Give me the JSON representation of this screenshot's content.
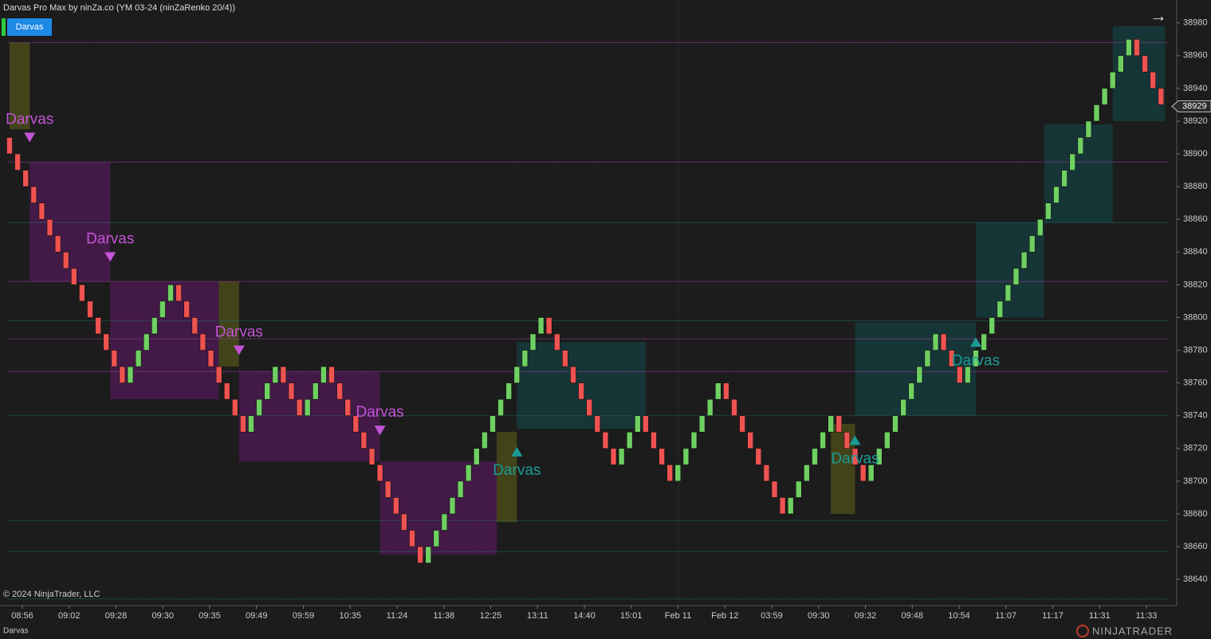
{
  "chart_data": {
    "type": "renko",
    "title": "Darvas Pro Max by ninZa.co (YM 03-24 (ninZaRenko 20/4))",
    "button": "Darvas",
    "copyright": "© 2024 NinjaTrader, LLC",
    "footer_tab": "Darvas",
    "brand": "NINJATRADER",
    "up_color": "#6fd062",
    "down_color": "#ef5350",
    "ylim": [
      38624,
      38994
    ],
    "yticks": [
      38640,
      38660,
      38680,
      38700,
      38720,
      38740,
      38760,
      38780,
      38800,
      38820,
      38840,
      38860,
      38880,
      38900,
      38920,
      38940,
      38960,
      38980
    ],
    "last_price": 38929,
    "categories": [
      "08:56",
      "09:02",
      "09:28",
      "09:30",
      "09:35",
      "09:49",
      "09:59",
      "10:35",
      "11:24",
      "11:38",
      "12:25",
      "13:11",
      "14:40",
      "15:01",
      "Feb 11",
      "Feb 12",
      "03:59",
      "09:30",
      "09:32",
      "09:48",
      "10:54",
      "11:07",
      "11:17",
      "11:31",
      "11:33"
    ],
    "open": [
      38910,
      38900,
      38890,
      38880,
      38870,
      38860,
      38850,
      38840,
      38830,
      38820,
      38810,
      38800,
      38790,
      38780,
      38770,
      38760,
      38770,
      38780,
      38790,
      38800,
      38810,
      38820,
      38810,
      38800,
      38790,
      38780,
      38770,
      38760,
      38750,
      38740,
      38730,
      38740,
      38750,
      38760,
      38770,
      38760,
      38750,
      38740,
      38750,
      38760,
      38770,
      38760,
      38750,
      38740,
      38730,
      38720,
      38710,
      38700,
      38690,
      38680,
      38670,
      38660,
      38650,
      38660,
      38670,
      38680,
      38690,
      38700,
      38710,
      38720,
      38730,
      38740,
      38750,
      38760,
      38770,
      38780,
      38790,
      38800,
      38790,
      38780,
      38770,
      38760,
      38750,
      38740,
      38730,
      38720,
      38710,
      38720,
      38730,
      38740,
      38730,
      38720,
      38710,
      38700,
      38710,
      38720,
      38730,
      38740,
      38750,
      38760,
      38750,
      38740,
      38730,
      38720,
      38710,
      38700,
      38690,
      38680,
      38690,
      38700,
      38710,
      38720,
      38730,
      38740,
      38730,
      38720,
      38710,
      38700,
      38710,
      38720,
      38730,
      38740,
      38750,
      38760,
      38770,
      38780,
      38790,
      38780,
      38770,
      38760,
      38770,
      38780,
      38790,
      38800,
      38810,
      38820,
      38830,
      38840,
      38850,
      38860,
      38870,
      38880,
      38890,
      38900,
      38910,
      38920,
      38930,
      38940,
      38950,
      38960,
      38970,
      38960,
      38950,
      38940
    ],
    "close": [
      38900,
      38890,
      38880,
      38870,
      38860,
      38850,
      38840,
      38830,
      38820,
      38810,
      38800,
      38790,
      38780,
      38770,
      38760,
      38770,
      38780,
      38790,
      38800,
      38810,
      38820,
      38810,
      38800,
      38790,
      38780,
      38770,
      38760,
      38750,
      38740,
      38730,
      38740,
      38750,
      38760,
      38770,
      38760,
      38750,
      38740,
      38750,
      38760,
      38770,
      38760,
      38750,
      38740,
      38730,
      38720,
      38710,
      38700,
      38690,
      38680,
      38670,
      38660,
      38650,
      38660,
      38670,
      38680,
      38690,
      38700,
      38710,
      38720,
      38730,
      38740,
      38750,
      38760,
      38770,
      38780,
      38790,
      38800,
      38790,
      38780,
      38770,
      38760,
      38750,
      38740,
      38730,
      38720,
      38710,
      38720,
      38730,
      38740,
      38730,
      38720,
      38710,
      38700,
      38710,
      38720,
      38730,
      38740,
      38750,
      38760,
      38750,
      38740,
      38730,
      38720,
      38710,
      38700,
      38690,
      38680,
      38690,
      38700,
      38710,
      38720,
      38730,
      38740,
      38730,
      38720,
      38710,
      38700,
      38710,
      38720,
      38730,
      38740,
      38750,
      38760,
      38770,
      38780,
      38790,
      38780,
      38770,
      38760,
      38770,
      38780,
      38790,
      38800,
      38810,
      38820,
      38830,
      38840,
      38850,
      38860,
      38870,
      38880,
      38890,
      38900,
      38910,
      38920,
      38930,
      38940,
      38950,
      38960,
      38970,
      38960,
      38950,
      38940,
      38930
    ],
    "boxes": [
      {
        "x": [
          0,
          2.5
        ],
        "top": 38968,
        "bottom": 38915,
        "color": "#4a4a1a"
      },
      {
        "x": [
          2.5,
          12.5
        ],
        "top": 38895,
        "bottom": 38822,
        "color": "#4a1a4f"
      },
      {
        "x": [
          12.5,
          26
        ],
        "top": 38822,
        "bottom": 38750,
        "color": "#4a1a4f"
      },
      {
        "x": [
          26,
          28.5
        ],
        "top": 38822,
        "bottom": 38770,
        "color": "#4a4a1a"
      },
      {
        "x": [
          28.5,
          46
        ],
        "top": 38767,
        "bottom": 38712,
        "color": "#4a1a4f"
      },
      {
        "x": [
          46,
          60.5
        ],
        "top": 38712,
        "bottom": 38655,
        "color": "#4a1a4f"
      },
      {
        "x": [
          60.5,
          63
        ],
        "top": 38730,
        "bottom": 38675,
        "color": "#4a4a1a"
      },
      {
        "x": [
          63,
          79
        ],
        "top": 38785,
        "bottom": 38732,
        "color": "#153a3c"
      },
      {
        "x": [
          102,
          105
        ],
        "top": 38735,
        "bottom": 38680,
        "color": "#4a4a1a"
      },
      {
        "x": [
          105,
          120
        ],
        "top": 38797,
        "bottom": 38740,
        "color": "#153a3c"
      },
      {
        "x": [
          120,
          128.5
        ],
        "top": 38858,
        "bottom": 38800,
        "color": "#153a3c"
      },
      {
        "x": [
          128.5,
          137
        ],
        "top": 38918,
        "bottom": 38858,
        "color": "#153a3c"
      },
      {
        "x": [
          137,
          143.5
        ],
        "top": 38978,
        "bottom": 38920,
        "color": "#153a3c"
      }
    ],
    "levels": [
      {
        "value": 38968,
        "color": "#a040a8"
      },
      {
        "value": 38895,
        "color": "#a040a8"
      },
      {
        "value": 38822,
        "color": "#a040a8"
      },
      {
        "value": 38787,
        "color": "#a040a8"
      },
      {
        "value": 38767,
        "color": "#a040a8"
      },
      {
        "value": 38858,
        "color": "#1f6f6a"
      },
      {
        "value": 38798,
        "color": "#1f6f6a"
      },
      {
        "value": 38740,
        "color": "#1f6f6a"
      },
      {
        "value": 38676,
        "color": "#1f6f6a"
      },
      {
        "value": 38657,
        "color": "#1f6f6a"
      },
      {
        "value": 38628,
        "color": "#1f6f6a"
      }
    ],
    "signals": [
      {
        "text": "Darvas",
        "x": 2.5,
        "y": 38910,
        "dir": "down",
        "color": "#c254d6"
      },
      {
        "text": "Darvas",
        "x": 12.5,
        "y": 38837,
        "dir": "down",
        "color": "#c254d6"
      },
      {
        "text": "Darvas",
        "x": 28.5,
        "y": 38780,
        "dir": "down",
        "color": "#c254d6"
      },
      {
        "text": "Darvas",
        "x": 46,
        "y": 38731,
        "dir": "down",
        "color": "#c254d6"
      },
      {
        "text": "Darvas",
        "x": 63,
        "y": 38718,
        "dir": "up",
        "color": "#1a9c95"
      },
      {
        "text": "Darvas",
        "x": 105,
        "y": 38725,
        "dir": "up",
        "color": "#1a9c95"
      },
      {
        "text": "Darvas",
        "x": 120,
        "y": 38785,
        "dir": "up",
        "color": "#1a9c95"
      }
    ]
  }
}
